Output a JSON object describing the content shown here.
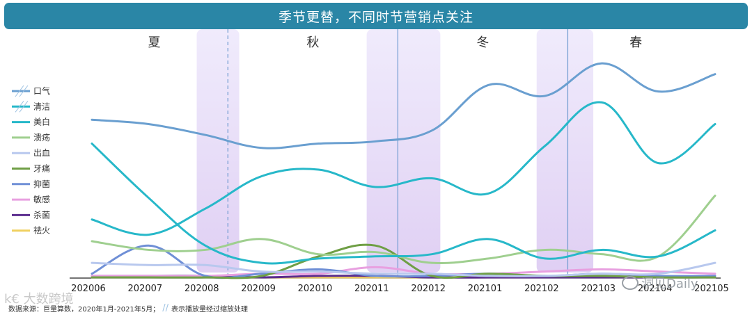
{
  "banner": {
    "title": "季节更替，不同时节营销点关注"
  },
  "chart_data": {
    "type": "line",
    "title": "季节更替，不同时节营销点关注",
    "categories": [
      "202006",
      "202007",
      "202008",
      "202009",
      "202010",
      "202011",
      "202012",
      "202101",
      "202102",
      "202103",
      "202104",
      "202105"
    ],
    "ylim": [
      0,
      100
    ],
    "seasons": [
      {
        "label": "夏",
        "center": 1.1
      },
      {
        "label": "秋",
        "center": 3.9
      },
      {
        "label": "冬",
        "center": 6.9
      },
      {
        "label": "春",
        "center": 9.6
      }
    ],
    "season_dividers": [
      {
        "x": 2.4,
        "style": "dashed"
      },
      {
        "x": 5.4,
        "style": "solid"
      },
      {
        "x": 8.4,
        "style": "solid"
      }
    ],
    "highlight_bands": [
      {
        "x0": 1.85,
        "x1": 2.6
      },
      {
        "x0": 4.85,
        "x1": 6.15
      },
      {
        "x0": 7.85,
        "x1": 8.85
      }
    ],
    "series": [
      {
        "name": "口气",
        "color": "#6a9fd0",
        "scaled": true,
        "values": [
          73,
          71,
          66,
          60,
          62,
          63,
          68,
          89,
          84,
          99,
          86,
          94
        ]
      },
      {
        "name": "清洁",
        "color": "#27b8c9",
        "scaled": true,
        "values": [
          62,
          37,
          15,
          7,
          9,
          10,
          11,
          18,
          9,
          13,
          10,
          22
        ]
      },
      {
        "name": "美白",
        "color": "#27b8c9",
        "scaled": false,
        "values": [
          27,
          20,
          32,
          47,
          50,
          42,
          46,
          39,
          61,
          81,
          53,
          71
        ]
      },
      {
        "name": "溃疡",
        "color": "#9fcf8f",
        "scaled": false,
        "values": [
          17,
          13,
          13,
          18,
          11,
          12,
          7,
          9,
          13,
          11,
          10,
          38
        ]
      },
      {
        "name": "出血",
        "color": "#b8c8ee",
        "scaled": false,
        "values": [
          7,
          6,
          6,
          3,
          3,
          2,
          2,
          1,
          1,
          2,
          2,
          7
        ]
      },
      {
        "name": "牙痛",
        "color": "#6f9f45",
        "scaled": false,
        "values": [
          0,
          0,
          0,
          1,
          10,
          15,
          1,
          2,
          1,
          1,
          0,
          0
        ]
      },
      {
        "name": "抑菌",
        "color": "#6f8fd6",
        "scaled": false,
        "values": [
          2,
          15,
          1,
          2,
          4,
          1,
          1,
          2,
          1,
          2,
          1,
          1
        ]
      },
      {
        "name": "敏感",
        "color": "#e8a0e0",
        "scaled": false,
        "values": [
          1,
          1,
          1,
          2,
          2,
          5,
          2,
          2,
          3,
          4,
          3,
          2
        ]
      },
      {
        "name": "杀菌",
        "color": "#5b2d8e",
        "scaled": false,
        "values": [
          1,
          1,
          1,
          0,
          1,
          1,
          0,
          0,
          0,
          0,
          0,
          0
        ]
      },
      {
        "name": "祛火",
        "color": "#f0d060",
        "scaled": false,
        "values": [
          0,
          0,
          0,
          0,
          0,
          0,
          0,
          0,
          0,
          0,
          0,
          0
        ]
      }
    ]
  },
  "footer": {
    "source": "数据来源：巨量算数，2020年1月-2021年5月；",
    "note": "表示播放量经过缩放处理",
    "slash": "//"
  },
  "watermarks": {
    "left": "k€ 大数跨境",
    "right": "洞见Daily"
  }
}
